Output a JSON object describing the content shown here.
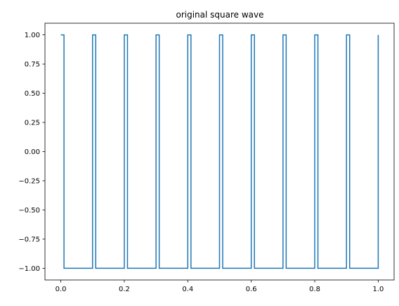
{
  "chart_data": {
    "type": "line",
    "title": "original square wave",
    "xlabel": "",
    "ylabel": "",
    "xlim": [
      -0.05,
      1.05
    ],
    "ylim": [
      -1.1,
      1.1
    ],
    "x_ticks": [
      0.0,
      0.2,
      0.4,
      0.6,
      0.8,
      1.0
    ],
    "x_tick_labels": [
      "0.0",
      "0.2",
      "0.4",
      "0.6",
      "0.8",
      "1.0"
    ],
    "y_ticks": [
      1.0,
      0.75,
      0.5,
      0.25,
      0.0,
      -0.25,
      -0.5,
      -0.75,
      -1.0
    ],
    "y_tick_labels": [
      "1.00",
      "0.75",
      "0.50",
      "0.25",
      "0.00",
      "−0.25",
      "−0.50",
      "−0.75",
      "−1.00"
    ],
    "grid": false,
    "colors": {
      "series": "#1f77b4"
    },
    "series": [
      {
        "x": [
          0.0,
          0.01,
          0.01,
          0.1,
          0.1,
          0.11,
          0.11,
          0.2,
          0.2,
          0.21,
          0.21,
          0.3,
          0.3,
          0.31,
          0.31,
          0.4,
          0.4,
          0.41,
          0.41,
          0.5,
          0.5,
          0.51,
          0.51,
          0.6,
          0.6,
          0.61,
          0.61,
          0.7,
          0.7,
          0.71,
          0.71,
          0.8,
          0.8,
          0.81,
          0.81,
          0.9,
          0.9,
          0.91,
          0.91,
          1.0,
          1.0
        ],
        "y": [
          1,
          1,
          -1,
          -1,
          1,
          1,
          -1,
          -1,
          1,
          1,
          -1,
          -1,
          1,
          1,
          -1,
          -1,
          1,
          1,
          -1,
          -1,
          1,
          1,
          -1,
          -1,
          1,
          1,
          -1,
          -1,
          1,
          1,
          -1,
          -1,
          1,
          1,
          -1,
          -1,
          1,
          1,
          -1,
          -1,
          1
        ]
      }
    ]
  }
}
